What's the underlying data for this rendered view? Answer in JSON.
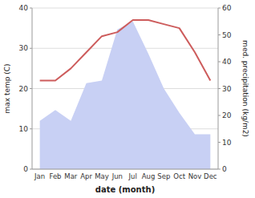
{
  "chart_data": {
    "type": "line",
    "xlabel": "date (month)",
    "ylabel": "max temp (C)",
    "y2label": "med. precipitation (kg/m2)",
    "categories": [
      "Jan",
      "Feb",
      "Mar",
      "Apr",
      "May",
      "Jun",
      "Jul",
      "Aug",
      "Sep",
      "Oct",
      "Nov",
      "Dec"
    ],
    "series": [
      {
        "type": "area",
        "axis": "y2",
        "color": "#c8d0f4",
        "values": [
          18,
          22,
          18,
          32,
          33,
          52,
          55,
          43,
          30,
          21,
          13,
          13
        ]
      },
      {
        "type": "line",
        "color": "#cd5c5c",
        "values": [
          22,
          22,
          25,
          29,
          33,
          34,
          37,
          37,
          36,
          35,
          29,
          22
        ]
      }
    ],
    "ylim": [
      0,
      40
    ],
    "yticks": [
      0,
      10,
      20,
      30,
      40
    ],
    "y2lim": [
      0,
      60
    ],
    "y2ticks": [
      0,
      10,
      20,
      30,
      40,
      50,
      60
    ],
    "grid": true
  }
}
